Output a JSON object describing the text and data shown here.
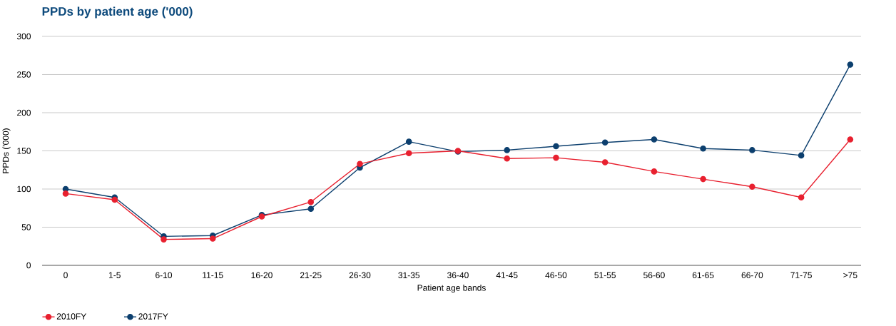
{
  "chart_data": {
    "type": "line",
    "title": "PPDs by patient age ('000)",
    "xlabel": "Patient age bands",
    "ylabel": "PPDs ('000)",
    "categories": [
      "0",
      "1-5",
      "6-10",
      "11-15",
      "16-20",
      "21-25",
      "26-30",
      "31-35",
      "36-40",
      "41-45",
      "46-50",
      "51-55",
      "56-60",
      "61-65",
      "66-70",
      "71-75",
      ">75"
    ],
    "series": [
      {
        "name": "2010FY",
        "color": "#e8202f",
        "values": [
          94,
          86,
          34,
          35,
          64,
          83,
          133,
          147,
          150,
          140,
          141,
          135,
          123,
          113,
          103,
          89,
          165
        ]
      },
      {
        "name": "2017FY",
        "color": "#0c3f6e",
        "values": [
          100,
          89,
          38,
          39,
          66,
          74,
          128,
          162,
          149,
          151,
          156,
          161,
          165,
          153,
          151,
          144,
          263
        ]
      }
    ],
    "ylim": [
      0,
      300
    ],
    "yticks": [
      0,
      50,
      100,
      150,
      200,
      250,
      300
    ],
    "grid": "y",
    "legend": "bottom left",
    "marker": "circle"
  }
}
